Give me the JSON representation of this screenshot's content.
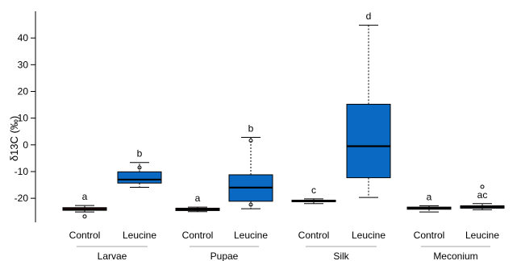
{
  "chart_data": {
    "type": "box",
    "ylabel": "δ13C (‰)",
    "yticks": [
      -20,
      -10,
      0,
      10,
      20,
      30,
      40
    ],
    "ylim": [
      -29,
      50
    ],
    "groups": [
      {
        "name": "Larvae",
        "categories": [
          0,
          1
        ]
      },
      {
        "name": "Pupae",
        "categories": [
          2,
          3
        ]
      },
      {
        "name": "Silk",
        "categories": [
          4,
          5
        ]
      },
      {
        "name": "Meconium",
        "categories": [
          6,
          7
        ]
      }
    ],
    "colors": {
      "Control": "#c0221a",
      "Leucine": "#0a69c2"
    },
    "boxes": [
      {
        "label": "Control",
        "group": "Larvae",
        "color": "#c0221a",
        "whisker_low": -25.1,
        "q1": -24.5,
        "median": -24.0,
        "q3": -23.5,
        "whisker_high": -22.7,
        "outliers": [
          -26.8
        ],
        "sig": "a"
      },
      {
        "label": "Leucine",
        "group": "Larvae",
        "color": "#0a69c2",
        "whisker_low": -15.9,
        "q1": -14.3,
        "median": -13.0,
        "q3": -10.1,
        "whisker_high": -6.6,
        "outliers": [
          -8.5
        ],
        "sig": "b"
      },
      {
        "label": "Control",
        "group": "Pupae",
        "color": "#c0221a",
        "whisker_low": -25.0,
        "q1": -24.6,
        "median": -24.2,
        "q3": -23.7,
        "whisker_high": -23.3,
        "outliers": [],
        "sig": "a"
      },
      {
        "label": "Leucine",
        "group": "Pupae",
        "color": "#0a69c2",
        "whisker_low": -23.9,
        "q1": -21.1,
        "median": -16.0,
        "q3": -11.2,
        "whisker_high": 2.8,
        "outliers": [
          -22.4,
          1.6
        ],
        "sig": "b"
      },
      {
        "label": "Control",
        "group": "Silk",
        "color": "#c0221a",
        "whisker_low": -22.0,
        "q1": -21.3,
        "median": -21.0,
        "q3": -20.7,
        "whisker_high": -20.2,
        "outliers": [],
        "sig": "c"
      },
      {
        "label": "Leucine",
        "group": "Silk",
        "color": "#0a69c2",
        "whisker_low": -19.7,
        "q1": -12.3,
        "median": -0.5,
        "q3": 15.2,
        "whisker_high": 44.8,
        "outliers": [],
        "sig": "d"
      },
      {
        "label": "Control",
        "group": "Meconium",
        "color": "#c0221a",
        "whisker_low": -25.1,
        "q1": -24.1,
        "median": -23.7,
        "q3": -23.3,
        "whisker_high": -22.8,
        "outliers": [],
        "sig": "a"
      },
      {
        "label": "Leucine",
        "group": "Meconium",
        "color": "#0a69c2",
        "whisker_low": -24.3,
        "q1": -23.7,
        "median": -23.2,
        "q3": -22.8,
        "whisker_high": -22.0,
        "outliers": [
          -15.7
        ],
        "sig": "ac"
      }
    ]
  }
}
